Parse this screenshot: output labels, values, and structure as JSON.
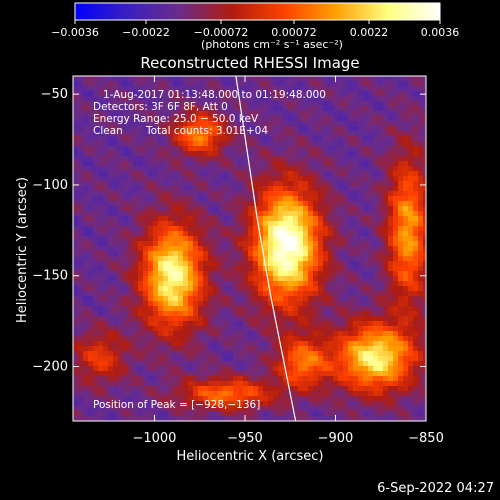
{
  "chart_data": {
    "type": "heatmap",
    "title": "Reconstructed RHESSI Image",
    "xlabel": "Heliocentric X (arcsec)",
    "ylabel": "Heliocentric Y (arcsec)",
    "xlim": [
      -1045,
      -850
    ],
    "ylim": [
      -230,
      -40
    ],
    "x_ticks": [
      {
        "value": -1000,
        "label": "−1000"
      },
      {
        "value": -950,
        "label": "−950"
      },
      {
        "value": -900,
        "label": "−900"
      },
      {
        "value": -850,
        "label": "−850"
      }
    ],
    "y_ticks": [
      {
        "value": -50,
        "label": "−50"
      },
      {
        "value": -100,
        "label": "−100"
      },
      {
        "value": -150,
        "label": "−150"
      },
      {
        "value": -200,
        "label": "−200"
      }
    ],
    "colorbar": {
      "range": [
        -0.0036,
        0.0036
      ],
      "ticks": [
        {
          "value": -0.0036,
          "label": "−0.0036"
        },
        {
          "value": -0.0022,
          "label": "−0.0022"
        },
        {
          "value": -0.00072,
          "label": "−0.00072"
        },
        {
          "value": 0.00072,
          "label": "0.00072"
        },
        {
          "value": 0.0022,
          "label": "0.0022"
        },
        {
          "value": 0.0036,
          "label": "0.0036"
        }
      ],
      "label": "(photons cm⁻² s⁻¹ asec⁻²)",
      "colors": [
        "#0000ff",
        "#3a1fc0",
        "#6a2c8a",
        "#b01c10",
        "#ff4000",
        "#ffa000",
        "#ffff80",
        "#ffffff"
      ]
    },
    "sources": [
      {
        "x": -927,
        "y": -133,
        "sigma_x": 13,
        "sigma_y": 22,
        "amp": 1.0
      },
      {
        "x": -990,
        "y": -150,
        "sigma_x": 12,
        "sigma_y": 20,
        "amp": 0.85
      },
      {
        "x": -878,
        "y": -195,
        "sigma_x": 15,
        "sigma_y": 13,
        "amp": 0.8
      },
      {
        "x": -975,
        "y": -72,
        "sigma_x": 10,
        "sigma_y": 8,
        "amp": 0.55
      },
      {
        "x": -918,
        "y": -198,
        "sigma_x": 10,
        "sigma_y": 10,
        "amp": 0.5
      },
      {
        "x": -860,
        "y": -125,
        "sigma_x": 8,
        "sigma_y": 28,
        "amp": 0.6
      },
      {
        "x": -960,
        "y": -215,
        "sigma_x": 18,
        "sigma_y": 6,
        "amp": 0.5
      },
      {
        "x": -1030,
        "y": -195,
        "sigma_x": 10,
        "sigma_y": 10,
        "amp": 0.35
      }
    ],
    "limb_curve": [
      [
        -955,
        -40
      ],
      [
        -949,
        -80
      ],
      [
        -943,
        -120
      ],
      [
        -936,
        -160
      ],
      [
        -928,
        -200
      ],
      [
        -922,
        -230
      ]
    ],
    "annotations": {
      "time": "1-Aug-2017 01:13:48.000 to 01:19:48.000",
      "detectors": "Detectors: 3F 6F 8F, Att 0",
      "energy": "Energy Range: 25.0 − 50.0 keV",
      "clean": "Clean",
      "counts": "Total counts: 3.01E+04",
      "peak": "Position of Peak = [−928,−136]"
    }
  },
  "footer": {
    "timestamp": "6-Sep-2022 04:27"
  }
}
